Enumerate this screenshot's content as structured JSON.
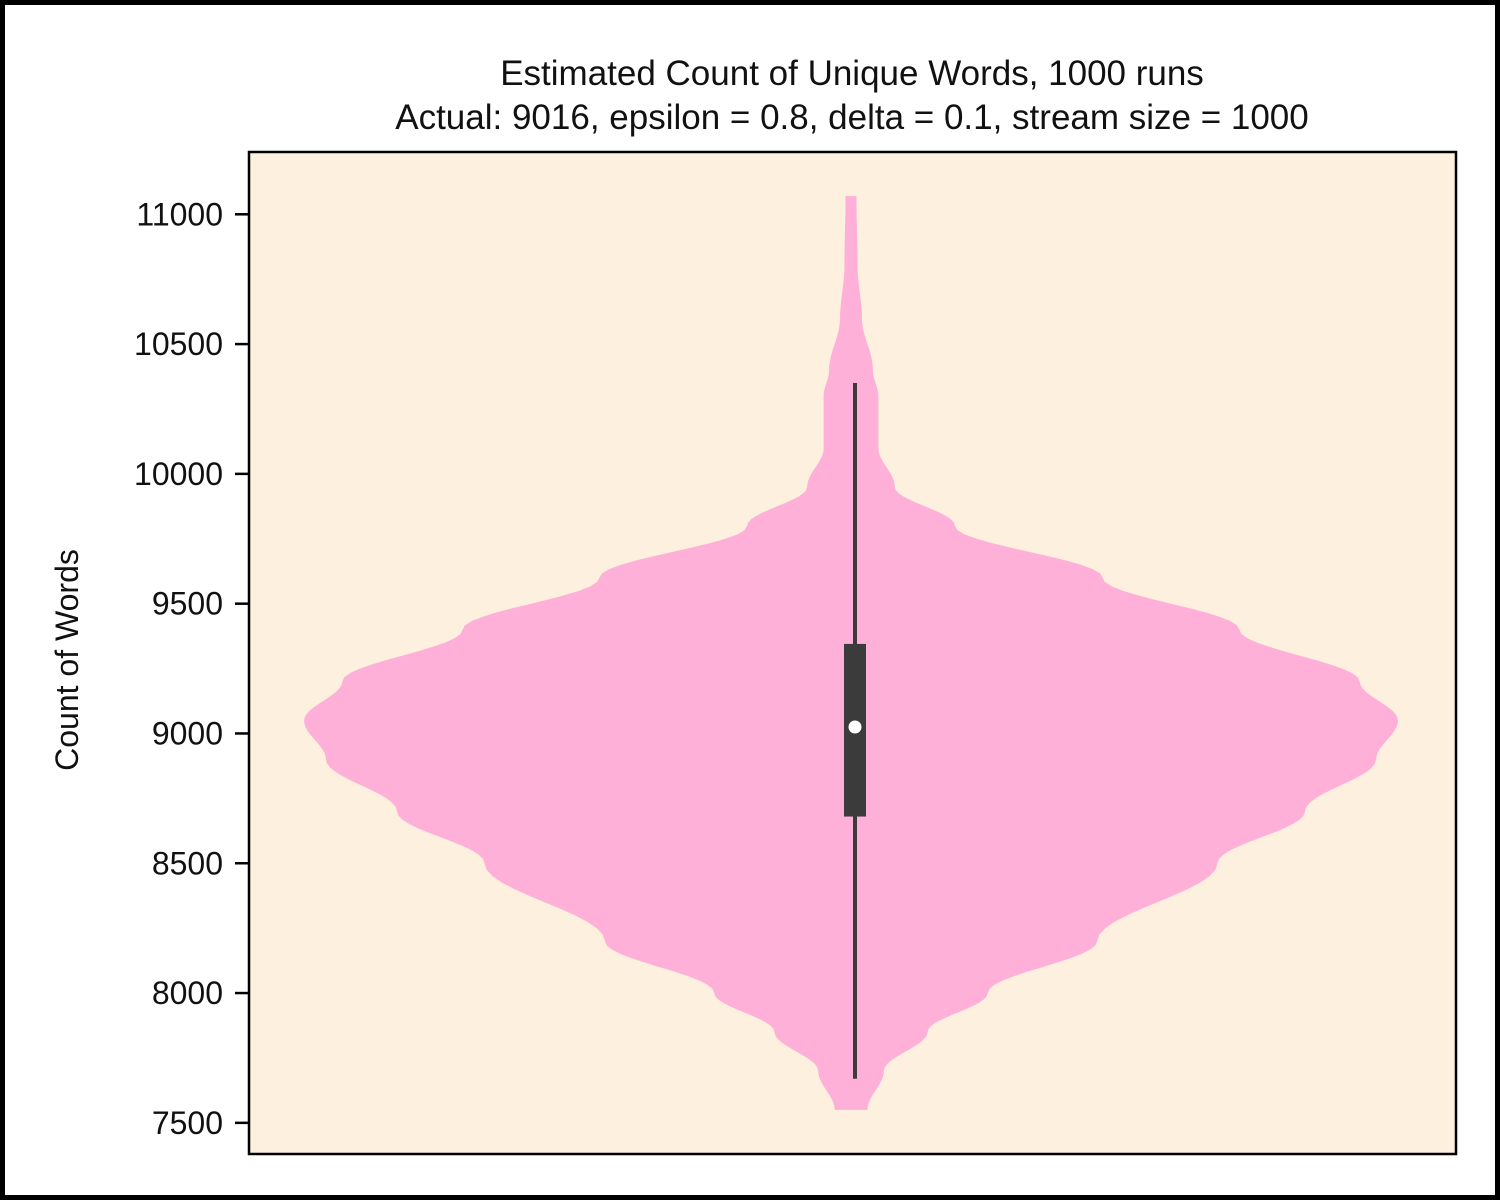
{
  "chart_data": {
    "type": "violin",
    "title": "Estimated Count of Unique Words, 1000 runs",
    "subtitle": "Actual: 9016, epsilon = 0.8, delta = 0.1, stream size = 1000",
    "xlabel": "",
    "ylabel": "Count of Words",
    "ylim": [
      7380,
      11240
    ],
    "yticks": [
      7500,
      8000,
      8500,
      9000,
      9500,
      10000,
      10500,
      11000
    ],
    "grid": false,
    "violin": {
      "min": 7550,
      "max": 11070,
      "whisker_low": 7670,
      "whisker_high": 10350,
      "q1": 8680,
      "median": 9025,
      "q3": 9345,
      "density_profile": [
        [
          7550,
          0.03
        ],
        [
          7700,
          0.06
        ],
        [
          7850,
          0.14
        ],
        [
          8000,
          0.25
        ],
        [
          8200,
          0.45
        ],
        [
          8500,
          0.67
        ],
        [
          8700,
          0.83
        ],
        [
          8900,
          0.96
        ],
        [
          9050,
          1.0
        ],
        [
          9200,
          0.93
        ],
        [
          9400,
          0.71
        ],
        [
          9600,
          0.46
        ],
        [
          9800,
          0.19
        ],
        [
          9950,
          0.08
        ],
        [
          10100,
          0.05
        ],
        [
          10300,
          0.05
        ],
        [
          10400,
          0.04
        ],
        [
          10600,
          0.02
        ],
        [
          10800,
          0.012
        ],
        [
          11070,
          0.01
        ]
      ]
    },
    "colors": {
      "violin_fill": "#ffb0d8",
      "plot_background": "#fdf0df",
      "box": "#3b3b3b",
      "median_marker": "#ffffff"
    }
  }
}
